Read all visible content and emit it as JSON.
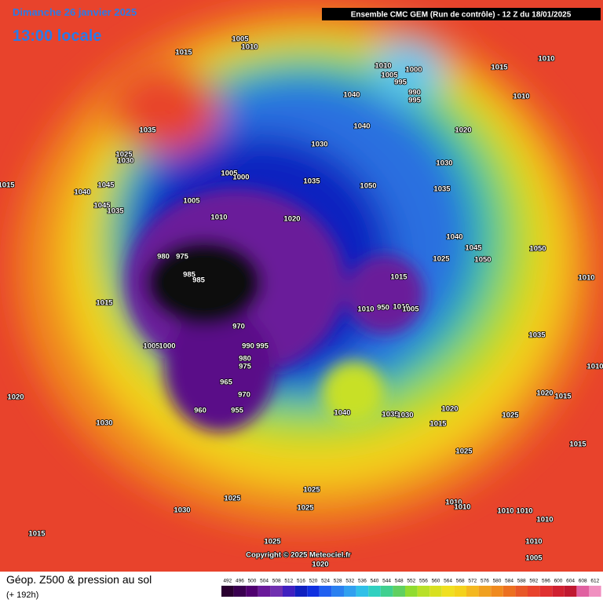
{
  "header": {
    "date": "Dimanche 26 janvier 2025",
    "time": "13:00 locale",
    "run": "Ensemble CMC GEM  (Run de contrôle)  -  12 Z du 18/01/2025"
  },
  "copyright": "Copyright © 2025 Meteociel.fr",
  "footer": {
    "title": "Géop. Z500 & pression au sol",
    "lead": "(+ 192h)"
  },
  "scale": {
    "labels": [
      "492",
      "496",
      "500",
      "504",
      "508",
      "512",
      "516",
      "520",
      "524",
      "528",
      "532",
      "536",
      "540",
      "544",
      "548",
      "552",
      "556",
      "560",
      "564",
      "568",
      "572",
      "576",
      "580",
      "584",
      "588",
      "592",
      "596",
      "600",
      "604",
      "608",
      "612"
    ]
  },
  "pressure_labels": [
    "1005",
    "1010",
    "1015",
    "1035",
    "1025",
    "1030",
    "1015",
    "1045",
    "1040",
    "1045",
    "1035",
    "1005",
    "1005",
    "1000",
    "1010",
    "1035",
    "1020",
    "980",
    "975",
    "985",
    "985",
    "1015",
    "970",
    "990",
    "995",
    "1005",
    "1000",
    "980",
    "975",
    "965",
    "970",
    "960",
    "955",
    "1020",
    "1030",
    "1025",
    "1030",
    "1015",
    "1025",
    "1020",
    "1025",
    "1025",
    "1040",
    "1040",
    "1030",
    "1050",
    "1010",
    "1005",
    "995",
    "1000",
    "990",
    "995",
    "1015",
    "1010",
    "1010",
    "1020",
    "1030",
    "1035",
    "1040",
    "1045",
    "1050",
    "1025",
    "1050",
    "1015",
    "1010",
    "950",
    "1010",
    "1005",
    "1010",
    "1035",
    "1040",
    "1035",
    "1030",
    "1020",
    "1015",
    "1025",
    "1020",
    "1015",
    "1010",
    "1025",
    "1015",
    "1010",
    "1010",
    "1010",
    "1010",
    "1010",
    "1010",
    "1005"
  ]
}
